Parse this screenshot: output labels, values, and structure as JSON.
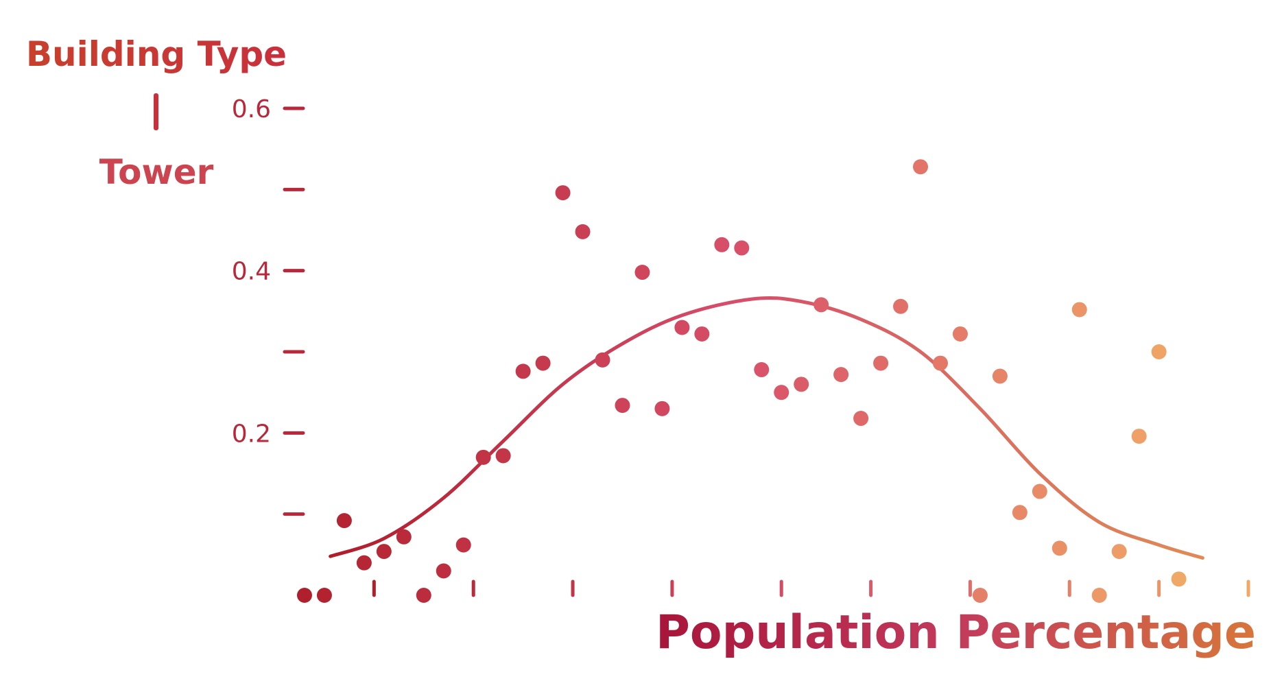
{
  "chart_data": {
    "type": "scatter",
    "title": "",
    "ylabel": "Building Type",
    "ylabel_sub": "Tower",
    "xlabel": "Population Percentage",
    "ylim": [
      0,
      0.6
    ],
    "xlim": [
      0,
      0.485
    ],
    "y_ticks": [
      {
        "value": 0.2,
        "label": "0.2"
      },
      {
        "value": 0.4,
        "label": "0.4"
      },
      {
        "value": 0.6,
        "label": "0.6"
      }
    ],
    "y_minor_ticks": [
      0.1,
      0.3,
      0.5
    ],
    "x_ticks": [
      0.045,
      0.095,
      0.145,
      0.195,
      0.25,
      0.295,
      0.345,
      0.395,
      0.44,
      0.485
    ],
    "grid": false,
    "legend": "none",
    "colors": {
      "start": "#b0202c",
      "mid": "#d8506a",
      "end": "#f0a866",
      "ylabel": "#c23a2e",
      "xlabel_start": "#a8153a",
      "xlabel_end": "#d7763a"
    },
    "series": [
      {
        "points": [
          {
            "x": 0.01,
            "y": 0.0
          },
          {
            "x": 0.02,
            "y": 0.0
          },
          {
            "x": 0.03,
            "y": 0.092
          },
          {
            "x": 0.04,
            "y": 0.04
          },
          {
            "x": 0.05,
            "y": 0.054
          },
          {
            "x": 0.06,
            "y": 0.072
          },
          {
            "x": 0.07,
            "y": 0.0
          },
          {
            "x": 0.08,
            "y": 0.03
          },
          {
            "x": 0.09,
            "y": 0.062
          },
          {
            "x": 0.1,
            "y": 0.17
          },
          {
            "x": 0.11,
            "y": 0.172
          },
          {
            "x": 0.12,
            "y": 0.276
          },
          {
            "x": 0.13,
            "y": 0.286
          },
          {
            "x": 0.14,
            "y": 0.496
          },
          {
            "x": 0.15,
            "y": 0.448
          },
          {
            "x": 0.16,
            "y": 0.29
          },
          {
            "x": 0.17,
            "y": 0.234
          },
          {
            "x": 0.18,
            "y": 0.398
          },
          {
            "x": 0.19,
            "y": 0.23
          },
          {
            "x": 0.2,
            "y": 0.33
          },
          {
            "x": 0.21,
            "y": 0.322
          },
          {
            "x": 0.22,
            "y": 0.432
          },
          {
            "x": 0.23,
            "y": 0.428
          },
          {
            "x": 0.24,
            "y": 0.278
          },
          {
            "x": 0.25,
            "y": 0.25
          },
          {
            "x": 0.26,
            "y": 0.26
          },
          {
            "x": 0.27,
            "y": 0.358
          },
          {
            "x": 0.28,
            "y": 0.272
          },
          {
            "x": 0.29,
            "y": 0.218
          },
          {
            "x": 0.3,
            "y": 0.286
          },
          {
            "x": 0.31,
            "y": 0.356
          },
          {
            "x": 0.32,
            "y": 0.528
          },
          {
            "x": 0.33,
            "y": 0.286
          },
          {
            "x": 0.34,
            "y": 0.322
          },
          {
            "x": 0.35,
            "y": 0.0
          },
          {
            "x": 0.36,
            "y": 0.27
          },
          {
            "x": 0.37,
            "y": 0.102
          },
          {
            "x": 0.38,
            "y": 0.128
          },
          {
            "x": 0.39,
            "y": 0.058
          },
          {
            "x": 0.4,
            "y": 0.352
          },
          {
            "x": 0.41,
            "y": 0.0
          },
          {
            "x": 0.42,
            "y": 0.054
          },
          {
            "x": 0.43,
            "y": 0.196
          },
          {
            "x": 0.44,
            "y": 0.3
          },
          {
            "x": 0.45,
            "y": 0.02
          }
        ]
      }
    ],
    "trend_line": {
      "type": "smooth",
      "points": [
        {
          "x": 0.023,
          "y": 0.048
        },
        {
          "x": 0.05,
          "y": 0.07
        },
        {
          "x": 0.08,
          "y": 0.12
        },
        {
          "x": 0.11,
          "y": 0.19
        },
        {
          "x": 0.14,
          "y": 0.26
        },
        {
          "x": 0.17,
          "y": 0.31
        },
        {
          "x": 0.2,
          "y": 0.345
        },
        {
          "x": 0.235,
          "y": 0.365
        },
        {
          "x": 0.26,
          "y": 0.362
        },
        {
          "x": 0.29,
          "y": 0.34
        },
        {
          "x": 0.32,
          "y": 0.3
        },
        {
          "x": 0.35,
          "y": 0.23
        },
        {
          "x": 0.38,
          "y": 0.15
        },
        {
          "x": 0.41,
          "y": 0.09
        },
        {
          "x": 0.44,
          "y": 0.062
        },
        {
          "x": 0.462,
          "y": 0.046
        }
      ]
    }
  }
}
